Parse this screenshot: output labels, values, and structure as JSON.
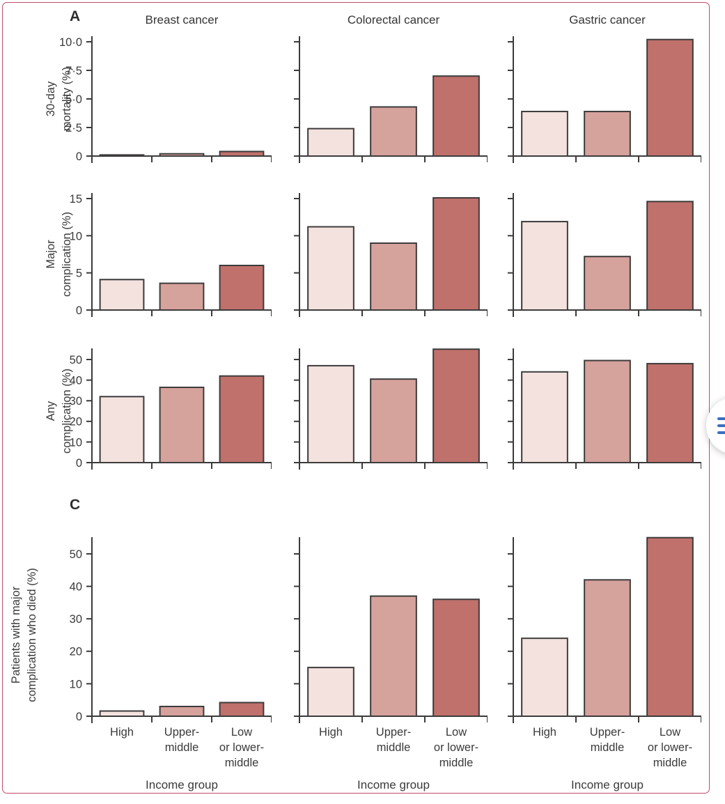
{
  "figure": {
    "panel_a_label": "A",
    "panel_c_label": "C"
  },
  "colors": {
    "frame": "#c24b67",
    "bar_fills": [
      "#f3e2de",
      "#d5a29c",
      "#c0716b"
    ],
    "bar_stroke": "#3d3b3c",
    "axis_stroke": "#3a3a3a",
    "menu_icon_blue": "#3b6fc0"
  },
  "menu_button": {
    "icon": "hamburger-menu-icon"
  },
  "chart_data": {
    "type": "bar",
    "columns": [
      "Breast cancer",
      "Colorectal cancer",
      "Gastric cancer"
    ],
    "categories": [
      "High",
      "Upper-middle",
      "Low or lower-middle"
    ],
    "category_label_lines": [
      [
        "High"
      ],
      [
        "Upper-",
        "middle"
      ],
      [
        "Low",
        "or lower-",
        "middle"
      ]
    ],
    "x_axis_label": "Income group",
    "legend_position": "none",
    "grid": false,
    "rows": [
      {
        "panel": "A",
        "ylabel": "30-day mortality (%)",
        "ylabel_lines": [
          "30-day",
          "mortality (%)"
        ],
        "ytick_values": [
          0,
          2.5,
          5,
          7.5,
          10
        ],
        "ytick_labels": [
          "0",
          "2·5",
          "5·0",
          "7·5",
          "10·0"
        ],
        "ylim": [
          0,
          10.6
        ],
        "series": [
          {
            "column": "Breast cancer",
            "values": [
              0.1,
              0.2,
              0.4
            ]
          },
          {
            "column": "Colorectal cancer",
            "values": [
              2.4,
              4.3,
              7.0
            ]
          },
          {
            "column": "Gastric cancer",
            "values": [
              3.9,
              3.9,
              10.2
            ]
          }
        ]
      },
      {
        "panel": "A",
        "ylabel": "Major complication (%)",
        "ylabel_lines": [
          "Major",
          "complication (%)"
        ],
        "ytick_values": [
          0,
          5,
          10,
          15
        ],
        "ytick_labels": [
          "0",
          "5",
          "10",
          "15"
        ],
        "ylim": [
          0,
          15.8
        ],
        "series": [
          {
            "column": "Breast cancer",
            "values": [
              4.1,
              3.6,
              6.0
            ]
          },
          {
            "column": "Colorectal cancer",
            "values": [
              11.2,
              9.0,
              15.1
            ]
          },
          {
            "column": "Gastric cancer",
            "values": [
              11.9,
              7.2,
              14.6
            ]
          }
        ]
      },
      {
        "panel": "A",
        "ylabel": "Any complication (%)",
        "ylabel_lines": [
          "Any",
          "complication (%)"
        ],
        "ytick_values": [
          0,
          10,
          20,
          30,
          40,
          50
        ],
        "ytick_labels": [
          "0",
          "10",
          "20",
          "30",
          "40",
          "50"
        ],
        "ylim": [
          0,
          56
        ],
        "series": [
          {
            "column": "Breast cancer",
            "values": [
              32,
              36.5,
              42
            ]
          },
          {
            "column": "Colorectal cancer",
            "values": [
              47,
              40.5,
              55
            ]
          },
          {
            "column": "Gastric cancer",
            "values": [
              44,
              49.5,
              48
            ]
          }
        ]
      },
      {
        "panel": "C",
        "ylabel": "Patients with major complication who died (%)",
        "ylabel_lines": [
          "Patients with major",
          "complication who died (%)"
        ],
        "ytick_values": [
          0,
          10,
          20,
          30,
          40,
          50
        ],
        "ytick_labels": [
          "0",
          "10",
          "20",
          "30",
          "40",
          "50"
        ],
        "ylim": [
          0,
          56
        ],
        "series": [
          {
            "column": "Breast cancer",
            "values": [
              1.6,
              3.0,
              4.2
            ]
          },
          {
            "column": "Colorectal cancer",
            "values": [
              15,
              37,
              36
            ]
          },
          {
            "column": "Gastric cancer",
            "values": [
              24,
              42,
              55
            ]
          }
        ]
      }
    ]
  }
}
